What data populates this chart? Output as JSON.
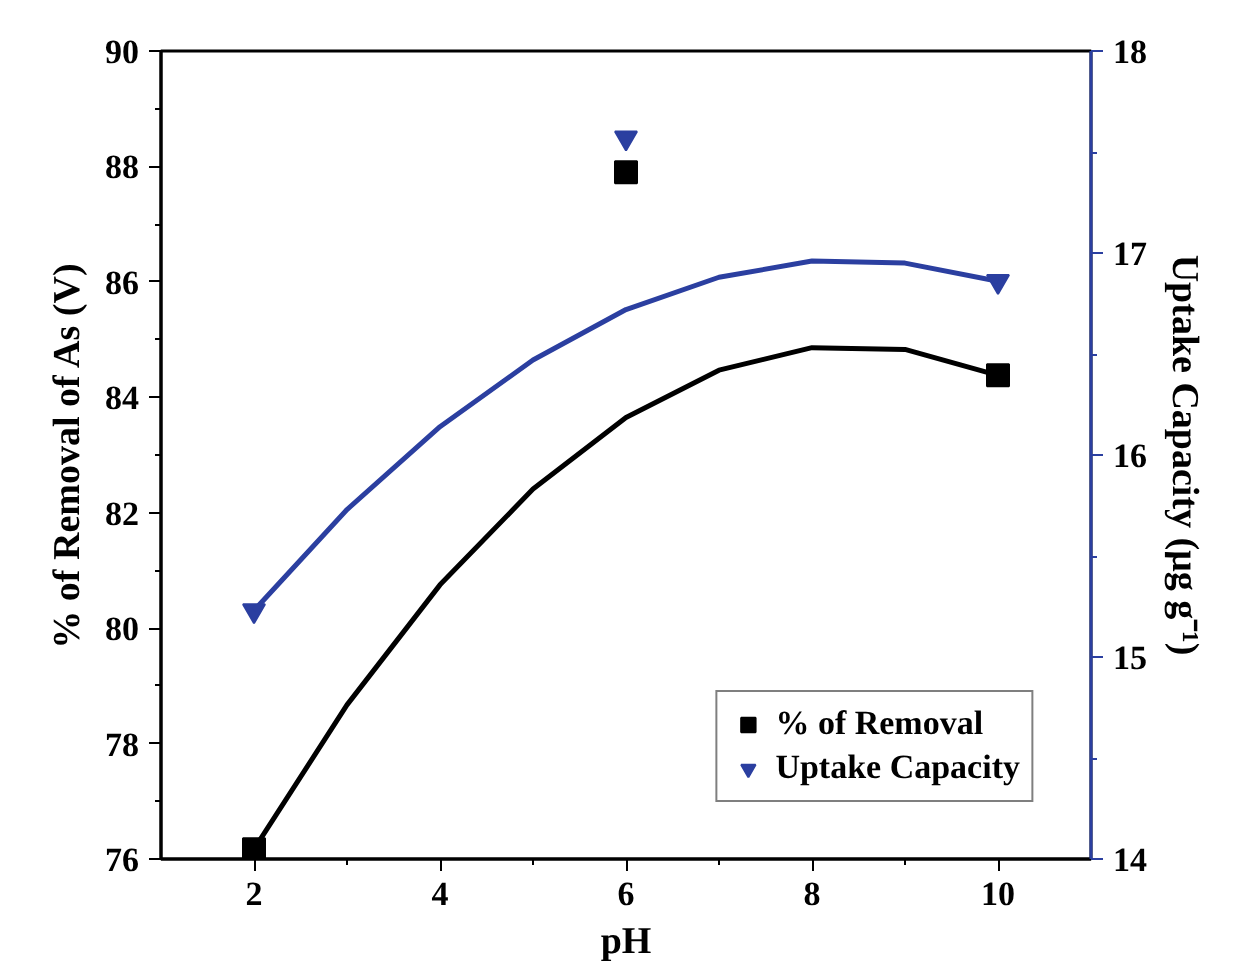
{
  "chart_data": {
    "type": "scatter",
    "xlabel": "pH",
    "ylabel": "% of Removal of As (V)",
    "y2label": "Uptake Capacity (μg g⁻¹)",
    "x": [
      2,
      6,
      10
    ],
    "series": [
      {
        "name": "% of Removal",
        "color": "#000000",
        "values": [
          76.17,
          87.9,
          84.38
        ],
        "marker": "square"
      },
      {
        "name": "Uptake Capacity",
        "color": "#2b3fa0",
        "values": [
          15.23,
          17.57,
          16.86
        ],
        "marker": "triangle",
        "axis": "y2"
      },
      {
        "type": "line",
        "color": "#000000",
        "x": [
          2,
          3,
          4,
          5,
          6,
          7,
          8,
          9,
          10
        ],
        "values": [
          76.17,
          78.67,
          80.75,
          82.41,
          83.65,
          84.47,
          84.86,
          84.83,
          84.38
        ],
        "marker": "none"
      },
      {
        "type": "line",
        "color": "#2b3fa0",
        "x": [
          2,
          3,
          4,
          5,
          6,
          7,
          8,
          9,
          10
        ],
        "values": [
          15.23,
          15.73,
          16.14,
          16.47,
          16.72,
          16.88,
          16.96,
          16.95,
          16.86
        ],
        "marker": "none",
        "axis": "y2"
      }
    ],
    "xlim": [
      1,
      11
    ],
    "xticks": [
      2,
      4,
      6,
      8,
      10
    ],
    "ylim": [
      76,
      90
    ],
    "yticks": [
      76,
      78,
      80,
      82,
      84,
      86,
      88,
      90
    ],
    "y2lim": [
      14,
      18
    ],
    "y2ticks": [
      14,
      15,
      16,
      17,
      18
    ],
    "legend": "bottom right",
    "grid": false
  }
}
